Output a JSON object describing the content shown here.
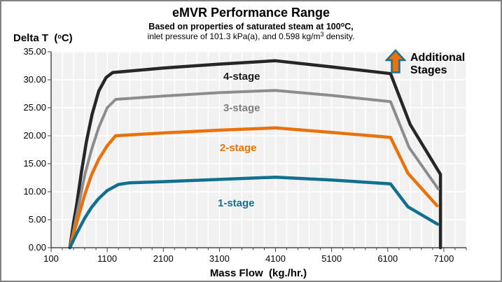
{
  "header": {
    "title": "eMVR Performance Range",
    "subtitle1_prefix": "Based on properties of saturated steam at 100",
    "subtitle1_sup": "o",
    "subtitle1_suffix": "C,",
    "subtitle2_prefix": "inlet pressure of 101.3 kPa(a), and 0.598 kg/m",
    "subtitle2_sup": "3",
    "subtitle2_suffix": " density."
  },
  "axes": {
    "y_title_prefix": "Delta T  (",
    "y_title_sup": "o",
    "y_title_suffix": "C)",
    "x_title": "Mass Flow  (kg./hr.)"
  },
  "annotation": {
    "line1": "Additional",
    "line2": "Stages",
    "arrow_fill": "#e8720c",
    "arrow_stroke": "#1a7190"
  },
  "series_labels": [
    {
      "text": "4-stage",
      "color": "#1a1a1a"
    },
    {
      "text": "3-stage",
      "color": "#7f7f7f"
    },
    {
      "text": "2-stage",
      "color": "#e8720c"
    },
    {
      "text": "1-stage",
      "color": "#11708f"
    }
  ],
  "colors": {
    "plot_bg": "#f1f1f1",
    "gridline": "#ffffff",
    "axis": "#262626",
    "tick": "#404040",
    "frame_border": "#828282"
  },
  "chart_data": {
    "type": "line",
    "title": "eMVR Performance Range",
    "subtitle": "Based on properties of saturated steam at 100°C, inlet pressure of 101.3 kPa(a), and 0.598 kg/m³ density.",
    "xlabel": "Mass Flow (kg./hr.)",
    "ylabel": "Delta T (°C)",
    "xlim": [
      100,
      7500
    ],
    "ylim": [
      0,
      35
    ],
    "grid": {
      "vertical_step": 200,
      "horizontal_step": 5,
      "color": "#ffffff"
    },
    "plot_bg": "#f1f1f1",
    "x_major_ticks": [
      100,
      1100,
      2100,
      3100,
      4100,
      5100,
      6100,
      7100
    ],
    "x_tick_labels": [
      "100",
      "1100",
      "2100",
      "3100",
      "4100",
      "5100",
      "6100",
      "7100"
    ],
    "x_minor_tick_step": 200,
    "y_ticks": [
      0,
      5,
      10,
      15,
      20,
      25,
      30,
      35
    ],
    "y_tick_labels": [
      "0.00",
      "5.00",
      "10.00",
      "15.00",
      "20.00",
      "25.00",
      "30.00",
      "35.00"
    ],
    "legend_position": "labels-on-chart",
    "series": [
      {
        "name": "4-stage",
        "color": "#262626",
        "width": 4.5,
        "points": [
          [
            435,
            0
          ],
          [
            500,
            4.5
          ],
          [
            560,
            8
          ],
          [
            640,
            13.5
          ],
          [
            730,
            19
          ],
          [
            830,
            23.8
          ],
          [
            950,
            28
          ],
          [
            1080,
            30.4
          ],
          [
            1200,
            31.3
          ],
          [
            2100,
            32.1
          ],
          [
            3100,
            32.8
          ],
          [
            4100,
            33.4
          ],
          [
            5100,
            32.3
          ],
          [
            6150,
            31.1
          ],
          [
            6500,
            22.0
          ],
          [
            7040,
            13.1
          ],
          [
            7040,
            0
          ]
        ]
      },
      {
        "name": "3-stage",
        "color": "#8c8c8c",
        "width": 4,
        "points": [
          [
            435,
            0
          ],
          [
            510,
            3.5
          ],
          [
            600,
            8
          ],
          [
            700,
            13
          ],
          [
            820,
            17.5
          ],
          [
            950,
            21.5
          ],
          [
            1100,
            25
          ],
          [
            1250,
            26.5
          ],
          [
            2100,
            27.1
          ],
          [
            3100,
            27.7
          ],
          [
            4100,
            28.1
          ],
          [
            5100,
            27.2
          ],
          [
            6150,
            26.1
          ],
          [
            6480,
            17.9
          ],
          [
            7000,
            10.5
          ]
        ]
      },
      {
        "name": "2-stage",
        "color": "#e8720c",
        "width": 4.5,
        "points": [
          [
            435,
            0
          ],
          [
            510,
            2.8
          ],
          [
            600,
            6
          ],
          [
            700,
            9.5
          ],
          [
            820,
            13
          ],
          [
            950,
            15.8
          ],
          [
            1100,
            18.2
          ],
          [
            1250,
            20.0
          ],
          [
            2100,
            20.5
          ],
          [
            3100,
            21.0
          ],
          [
            4100,
            21.4
          ],
          [
            5100,
            20.6
          ],
          [
            6150,
            19.7
          ],
          [
            6460,
            13.3
          ],
          [
            6980,
            7.5
          ]
        ]
      },
      {
        "name": "1-stage",
        "color": "#11708f",
        "width": 4.5,
        "points": [
          [
            435,
            0
          ],
          [
            510,
            1.6
          ],
          [
            600,
            3.4
          ],
          [
            700,
            5.3
          ],
          [
            820,
            7.2
          ],
          [
            950,
            8.8
          ],
          [
            1100,
            10.2
          ],
          [
            1300,
            11.3
          ],
          [
            1500,
            11.6
          ],
          [
            2100,
            11.8
          ],
          [
            3100,
            12.2
          ],
          [
            4100,
            12.6
          ],
          [
            5100,
            12.1
          ],
          [
            6150,
            11.4
          ],
          [
            6460,
            7.3
          ],
          [
            6990,
            4.2
          ]
        ]
      }
    ]
  }
}
